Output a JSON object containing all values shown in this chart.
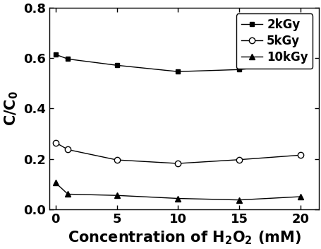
{
  "x_2kGy": [
    0,
    1,
    5,
    10,
    15,
    20
  ],
  "y_2kGy": [
    0.615,
    0.597,
    0.572,
    0.547,
    0.555,
    0.58
  ],
  "x_5kGy": [
    0,
    1,
    5,
    10,
    15,
    20
  ],
  "y_5kGy": [
    0.265,
    0.237,
    0.196,
    0.182,
    0.197,
    0.215
  ],
  "x_10kGy": [
    0,
    1,
    5,
    10,
    15,
    20
  ],
  "y_10kGy": [
    0.105,
    0.06,
    0.055,
    0.043,
    0.037,
    0.05
  ],
  "xlabel": "Concentration of H$_2$O$_2$ (mM)",
  "ylabel": "C/C$_0$",
  "xlim": [
    -0.5,
    21.5
  ],
  "ylim": [
    0.0,
    0.8
  ],
  "xticks": [
    0,
    5,
    10,
    15,
    20
  ],
  "yticks": [
    0.0,
    0.2,
    0.4,
    0.6,
    0.8
  ],
  "legend_labels": [
    "2kGy",
    "5kGy",
    "10kGy"
  ],
  "line_color": "#000000",
  "bg_color": "#ffffff",
  "label_fontsize": 15,
  "tick_fontsize": 13,
  "legend_fontsize": 12
}
